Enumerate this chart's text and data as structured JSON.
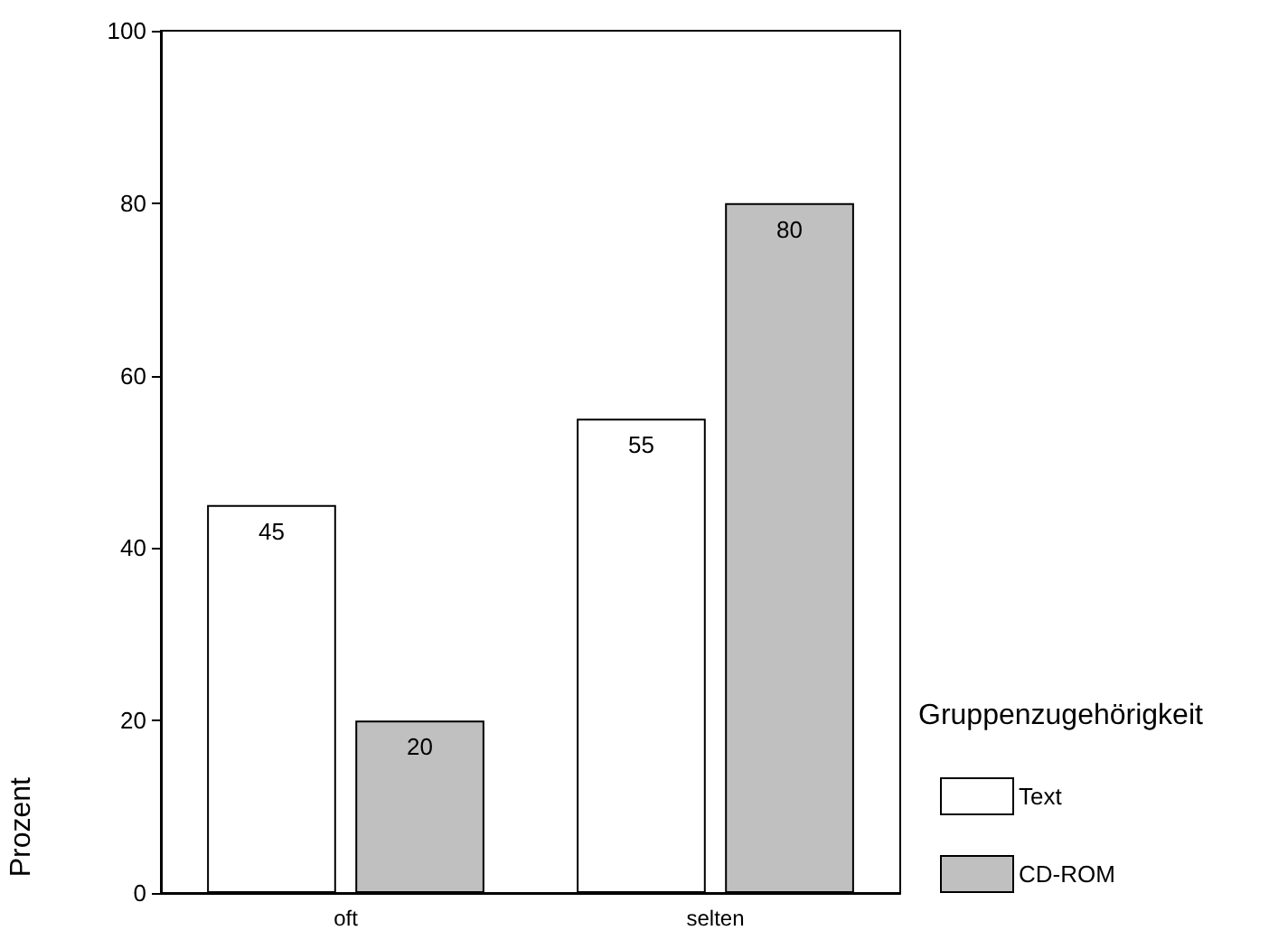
{
  "chart_data": {
    "type": "bar",
    "categories": [
      "oft",
      "selten"
    ],
    "series": [
      {
        "name": "Text",
        "color": "#ffffff",
        "values": [
          45,
          55
        ]
      },
      {
        "name": "CD-ROM",
        "color": "#c0c0c0",
        "values": [
          20,
          80
        ]
      }
    ],
    "ylabel": "Prozent",
    "legend_title": "Gruppenzugehörigkeit",
    "legend": "right",
    "ylim": [
      0,
      100
    ],
    "yticks": [
      0,
      20,
      40,
      60,
      80,
      100
    ],
    "grid": false,
    "data_labels": true
  }
}
